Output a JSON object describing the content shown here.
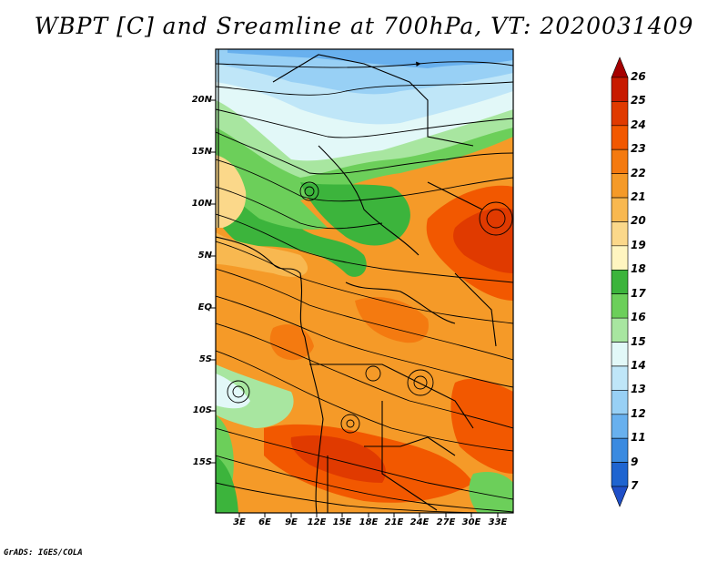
{
  "title": "WBPT [C] and Sreamline at 700hPa, VT: 2020031409",
  "credit": "GrADS: IGES/COLA",
  "lat_labels": [
    "20N",
    "15N",
    "10N",
    "5N",
    "EQ",
    "5S",
    "10S",
    "15S"
  ],
  "lon_labels": [
    "3E",
    "6E",
    "9E",
    "12E",
    "15E",
    "18E",
    "21E",
    "24E",
    "27E",
    "30E",
    "33E"
  ],
  "colorbar": {
    "labels": [
      "26",
      "25",
      "24",
      "23",
      "22",
      "21",
      "20",
      "19",
      "18",
      "17",
      "16",
      "15",
      "14",
      "13",
      "12",
      "11",
      "9",
      "7"
    ],
    "colors": [
      "#a50000",
      "#c81a00",
      "#e03a00",
      "#f25800",
      "#f47a10",
      "#f59a28",
      "#f8b850",
      "#fbd88a",
      "#fff5c0",
      "#3cb43c",
      "#6ccf5a",
      "#a8e6a0",
      "#e2f8f8",
      "#bfe6f8",
      "#98d0f5",
      "#68b0ee",
      "#3a8ae0",
      "#1e64d0",
      "#1f4fc8"
    ]
  }
}
